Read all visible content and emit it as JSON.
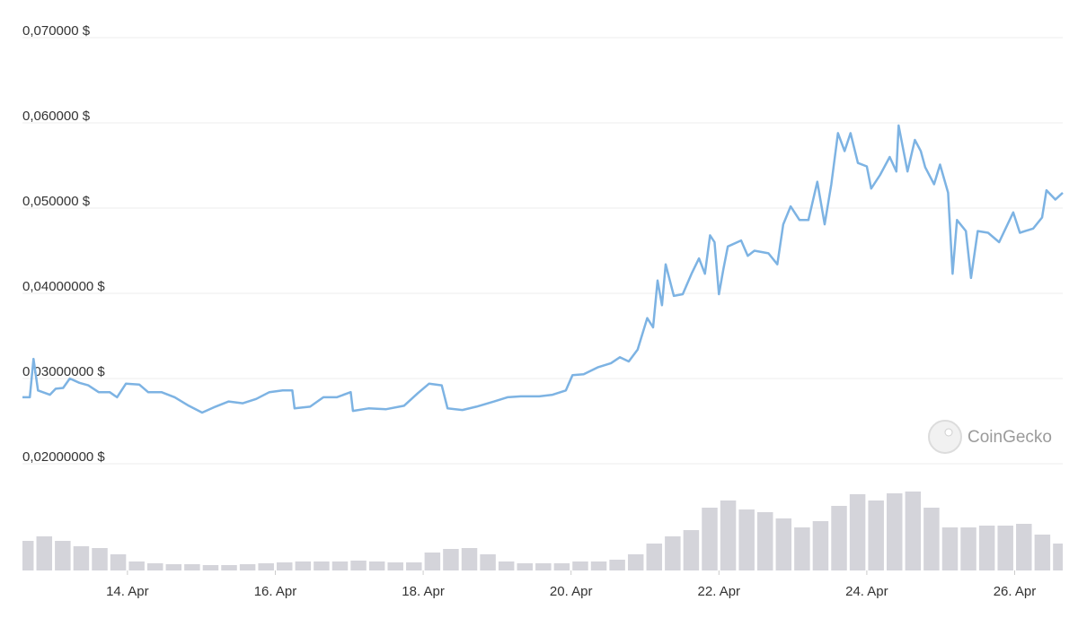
{
  "chart_data": {
    "type": "line",
    "color": "#7db3e3",
    "xlim": [
      12.58,
      26.65
    ],
    "ylim": [
      0.02,
      0.07
    ],
    "grid": true,
    "yticks": [
      {
        "value": 0.02,
        "label": "0,02000000 $"
      },
      {
        "value": 0.03,
        "label": "0,03000000 $"
      },
      {
        "value": 0.04,
        "label": "0,04000000 $"
      },
      {
        "value": 0.05,
        "label": "0,050000 $"
      },
      {
        "value": 0.06,
        "label": "0,060000 $"
      },
      {
        "value": 0.07,
        "label": "0,070000 $"
      }
    ],
    "xticks": [
      {
        "value": 14,
        "label": "14. Apr"
      },
      {
        "value": 16,
        "label": "16. Apr"
      },
      {
        "value": 18,
        "label": "18. Apr"
      },
      {
        "value": 20,
        "label": "20. Apr"
      },
      {
        "value": 22,
        "label": "22. Apr"
      },
      {
        "value": 24,
        "label": "24. Apr"
      },
      {
        "value": 26,
        "label": "26. Apr"
      }
    ],
    "x": [
      12.58,
      12.68,
      12.73,
      12.79,
      12.95,
      13.03,
      13.13,
      13.22,
      13.35,
      13.47,
      13.61,
      13.76,
      13.86,
      13.98,
      14.16,
      14.28,
      14.46,
      14.64,
      14.83,
      15.01,
      15.19,
      15.37,
      15.56,
      15.74,
      15.92,
      16.1,
      16.23,
      16.26,
      16.47,
      16.65,
      16.83,
      17.02,
      17.05,
      17.26,
      17.5,
      17.74,
      17.93,
      18.08,
      18.25,
      18.33,
      18.53,
      18.72,
      18.96,
      19.14,
      19.32,
      19.57,
      19.75,
      19.93,
      20.02,
      20.17,
      20.36,
      20.54,
      20.66,
      20.78,
      20.9,
      21.03,
      21.11,
      21.17,
      21.23,
      21.28,
      21.39,
      21.51,
      21.63,
      21.73,
      21.81,
      21.88,
      21.94,
      22.0,
      22.06,
      22.12,
      22.3,
      22.39,
      22.48,
      22.67,
      22.79,
      22.87,
      22.97,
      23.09,
      23.21,
      23.33,
      23.43,
      23.52,
      23.61,
      23.7,
      23.78,
      23.88,
      24.0,
      24.06,
      24.18,
      24.31,
      24.4,
      24.43,
      24.55,
      24.65,
      24.73,
      24.79,
      24.91,
      24.99,
      25.1,
      25.16,
      25.22,
      25.34,
      25.41,
      25.5,
      25.64,
      25.79,
      25.98,
      26.07,
      26.25,
      26.37,
      26.43,
      26.55,
      26.65
    ],
    "values": [
      0.0278,
      0.0278,
      0.0323,
      0.0286,
      0.0281,
      0.0288,
      0.0289,
      0.03,
      0.0295,
      0.0292,
      0.0284,
      0.0284,
      0.0278,
      0.0294,
      0.0293,
      0.0284,
      0.0284,
      0.0278,
      0.0268,
      0.026,
      0.0267,
      0.0273,
      0.0271,
      0.0276,
      0.0284,
      0.0286,
      0.0286,
      0.0265,
      0.0267,
      0.0278,
      0.0278,
      0.0284,
      0.0262,
      0.0265,
      0.0264,
      0.0268,
      0.0283,
      0.0294,
      0.0292,
      0.0265,
      0.0263,
      0.0267,
      0.0273,
      0.0278,
      0.0279,
      0.0279,
      0.0281,
      0.0286,
      0.0304,
      0.0305,
      0.0313,
      0.0318,
      0.0325,
      0.032,
      0.0334,
      0.0371,
      0.036,
      0.0415,
      0.0386,
      0.0434,
      0.0397,
      0.0399,
      0.0423,
      0.0441,
      0.0423,
      0.0468,
      0.046,
      0.0399,
      0.0428,
      0.0455,
      0.0462,
      0.0444,
      0.045,
      0.0447,
      0.0434,
      0.0481,
      0.0502,
      0.0486,
      0.0486,
      0.0531,
      0.0481,
      0.0528,
      0.0588,
      0.0567,
      0.0588,
      0.0553,
      0.0549,
      0.0523,
      0.0539,
      0.056,
      0.0543,
      0.0597,
      0.0543,
      0.058,
      0.0567,
      0.0548,
      0.0528,
      0.0551,
      0.0518,
      0.0423,
      0.0486,
      0.0473,
      0.0418,
      0.0473,
      0.0471,
      0.046,
      0.0495,
      0.0471,
      0.0476,
      0.0489,
      0.0521,
      0.051,
      0.0518
    ],
    "volume": {
      "color": "#d4d4da",
      "x": [
        12.625,
        12.875,
        13.125,
        13.375,
        13.625,
        13.875,
        14.125,
        14.375,
        14.625,
        14.875,
        15.125,
        15.375,
        15.625,
        15.875,
        16.125,
        16.375,
        16.625,
        16.875,
        17.125,
        17.375,
        17.625,
        17.875,
        18.125,
        18.375,
        18.625,
        18.875,
        19.125,
        19.375,
        19.625,
        19.875,
        20.125,
        20.375,
        20.625,
        20.875,
        21.125,
        21.375,
        21.625,
        21.875,
        22.125,
        22.375,
        22.625,
        22.875,
        23.125,
        23.375,
        23.625,
        23.875,
        24.125,
        24.375,
        24.625,
        24.875,
        25.125,
        25.375,
        25.625,
        25.875,
        26.125,
        26.375,
        26.625
      ],
      "values": [
        33,
        38,
        33,
        27,
        25,
        18,
        10,
        8,
        7,
        7,
        6,
        6,
        7,
        8,
        9,
        10,
        10,
        10,
        11,
        10,
        9,
        9,
        20,
        24,
        25,
        18,
        10,
        8,
        8,
        8,
        10,
        10,
        12,
        18,
        30,
        38,
        45,
        70,
        78,
        68,
        65,
        58,
        48,
        55,
        72,
        85,
        78,
        86,
        88,
        70,
        48,
        48,
        50,
        50,
        52,
        40,
        30
      ]
    },
    "watermark": "CoinGecko"
  }
}
